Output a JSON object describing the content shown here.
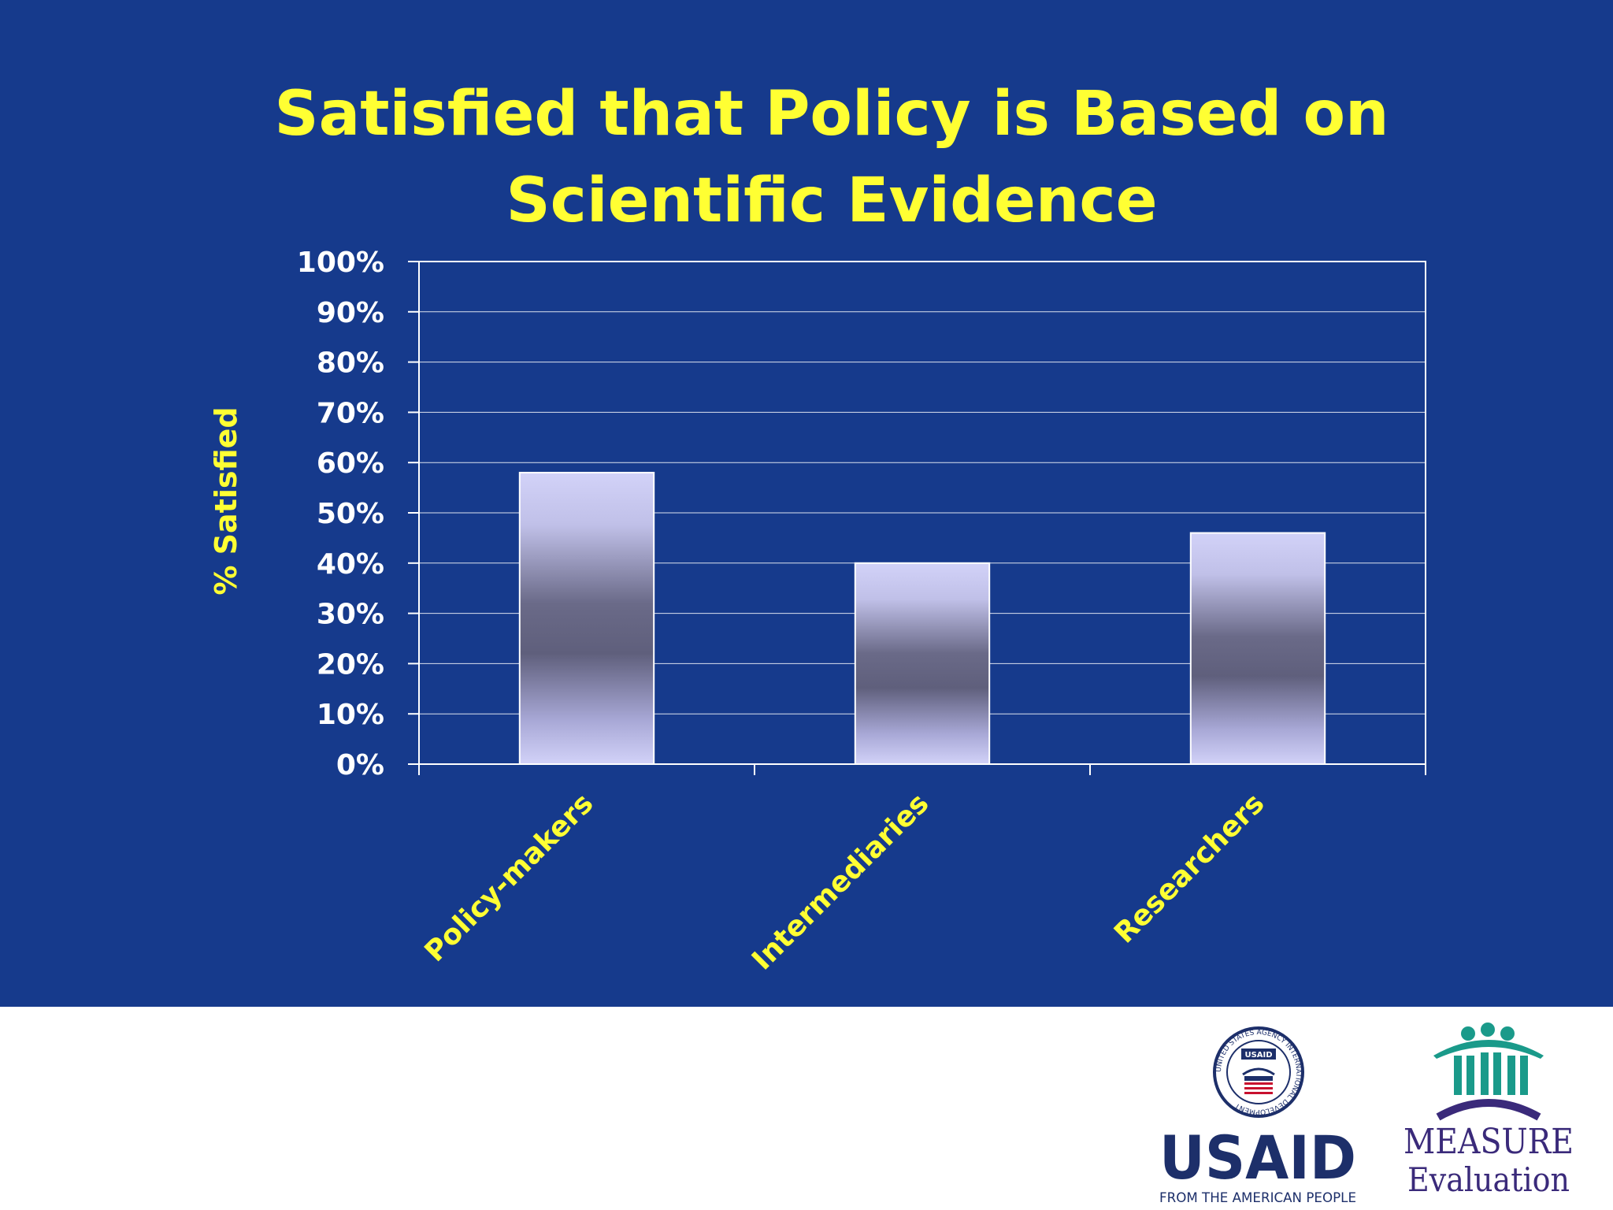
{
  "slide": {
    "background_color": "#163a8c",
    "footer_background": "#ffffff"
  },
  "chart_data": {
    "type": "bar",
    "title": "Satisfied that Policy is Based on Scientific Evidence",
    "ylabel": "% Satisfied",
    "xlabel": "",
    "categories": [
      "Policy-makers",
      "Intermediaries",
      "Researchers"
    ],
    "values": [
      58,
      40,
      46
    ],
    "ylim": [
      0,
      100
    ],
    "yticks": [
      "0%",
      "10%",
      "20%",
      "30%",
      "40%",
      "50%",
      "60%",
      "70%",
      "80%",
      "90%",
      "100%"
    ],
    "grid": true,
    "legend": "none",
    "colors": {
      "title": "#ffff33",
      "ylabel": "#ffff33",
      "category_labels": "#ffff33",
      "tick_labels": "#ffffff",
      "bar_light": "#d0d0f6",
      "bar_dark": "#5f5f7c"
    }
  },
  "logos": {
    "usaid": {
      "wordmark": "USAID",
      "tagline": "FROM THE AMERICAN PEOPLE",
      "seal_ring_text": "UNITED STATES AGENCY INTERNATIONAL DEVELOPMENT",
      "seal_badge": "USAID"
    },
    "measure": {
      "line1": "MEASURE",
      "line2": "Evaluation"
    }
  }
}
